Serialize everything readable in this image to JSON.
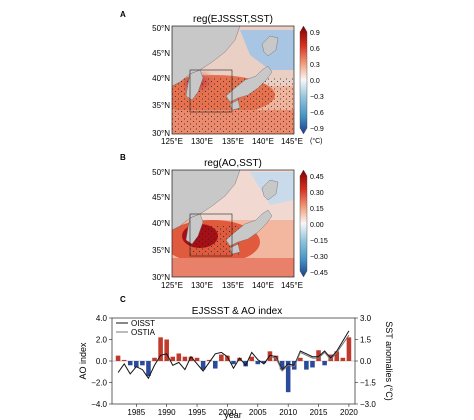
{
  "panels": {
    "a": {
      "letter": "A",
      "title": "reg(EJSSST,SST)",
      "lat_labels": [
        "50°N",
        "45°N",
        "40°N",
        "35°N",
        "30°N"
      ],
      "lon_labels": [
        "125°E",
        "130°E",
        "135°E",
        "140°E",
        "145°E"
      ],
      "colorbar_ticks": [
        "0.9",
        "0.6",
        "0.3",
        "0.0",
        "−0.3",
        "−0.6",
        "−0.9"
      ],
      "colorbar_unit": "(°C)"
    },
    "b": {
      "letter": "B",
      "title": "reg(AO,SST)",
      "lat_labels": [
        "50°N",
        "45°N",
        "40°N",
        "35°N",
        "30°N"
      ],
      "lon_labels": [
        "125°E",
        "130°E",
        "135°E",
        "140°E",
        "145°E"
      ],
      "colorbar_ticks": [
        "0.45",
        "0.30",
        "0.15",
        "0.00",
        "−0.15",
        "−0.30",
        "−0.45"
      ],
      "colorbar_unit": "(°C)"
    },
    "c": {
      "letter": "C"
    }
  },
  "colors": {
    "land": "#c8c8c8",
    "warm": "#d7301f",
    "cool": "#4a74b4",
    "bar_red": "#c0392b",
    "bar_blue": "#2b4a9b",
    "oisst": "#111111",
    "ostia": "#777777"
  },
  "chart_data": {
    "type": "bar",
    "title": "EJSSST & AO index",
    "xlabel": "year",
    "ylabel": "AO index",
    "y2label": "SST anomalies (°C)",
    "x": [
      1982,
      1983,
      1984,
      1985,
      1986,
      1987,
      1988,
      1989,
      1990,
      1991,
      1992,
      1993,
      1994,
      1995,
      1996,
      1997,
      1998,
      1999,
      2000,
      2001,
      2002,
      2003,
      2004,
      2005,
      2006,
      2007,
      2008,
      2009,
      2010,
      2011,
      2012,
      2013,
      2014,
      2015,
      2016,
      2017,
      2018,
      2019,
      2020
    ],
    "xticks": [
      1985,
      1990,
      1995,
      2000,
      2005,
      2010,
      2015,
      2020
    ],
    "xlim": [
      1981,
      2021
    ],
    "ylim": [
      -4.0,
      4.0
    ],
    "yticks": [
      "4.0",
      "2.0",
      "0.0",
      "−2.0",
      "−4.0"
    ],
    "y2lim": [
      -3.0,
      3.0
    ],
    "y2ticks": [
      "3.0",
      "1.5",
      "0.0",
      "−1.5",
      "−3.0"
    ],
    "ao_index": [
      0.5,
      0.1,
      -0.4,
      -0.6,
      -0.4,
      -1.4,
      0.3,
      2.2,
      2.0,
      0.4,
      0.7,
      0.4,
      0.4,
      0.3,
      -0.8,
      0.1,
      -0.7,
      0.6,
      0.5,
      -0.3,
      0.3,
      -0.5,
      0.4,
      -0.3,
      -0.2,
      0.9,
      0.5,
      -0.8,
      -2.9,
      -0.8,
      0.3,
      -0.8,
      -0.6,
      1.0,
      -0.4,
      0.6,
      0.9,
      0.3,
      2.2
    ],
    "series": [
      {
        "name": "OISST",
        "values": [
          -0.8,
          -0.2,
          -0.9,
          -0.4,
          -0.6,
          -1.2,
          -0.3,
          0.4,
          0.5,
          -0.3,
          -0.1,
          -0.6,
          0.3,
          -0.2,
          -0.7,
          -0.1,
          0.5,
          0.6,
          0.3,
          -0.5,
          0.2,
          -0.3,
          0.6,
          0.1,
          -0.2,
          0.4,
          0.3,
          -0.6,
          -0.2,
          -0.3,
          0.7,
          0.5,
          0.3,
          0.3,
          0.7,
          0.2,
          0.7,
          1.4,
          2.1
        ]
      },
      {
        "name": "OSTIA",
        "values": [
          null,
          null,
          null,
          null,
          null,
          null,
          null,
          null,
          null,
          null,
          null,
          null,
          null,
          null,
          null,
          null,
          null,
          null,
          null,
          null,
          null,
          null,
          null,
          null,
          null,
          0.3,
          0.2,
          -0.7,
          -0.3,
          -0.4,
          0.6,
          0.4,
          0.2,
          0.2,
          0.6,
          0.1,
          0.6,
          1.2,
          1.8
        ]
      }
    ]
  }
}
